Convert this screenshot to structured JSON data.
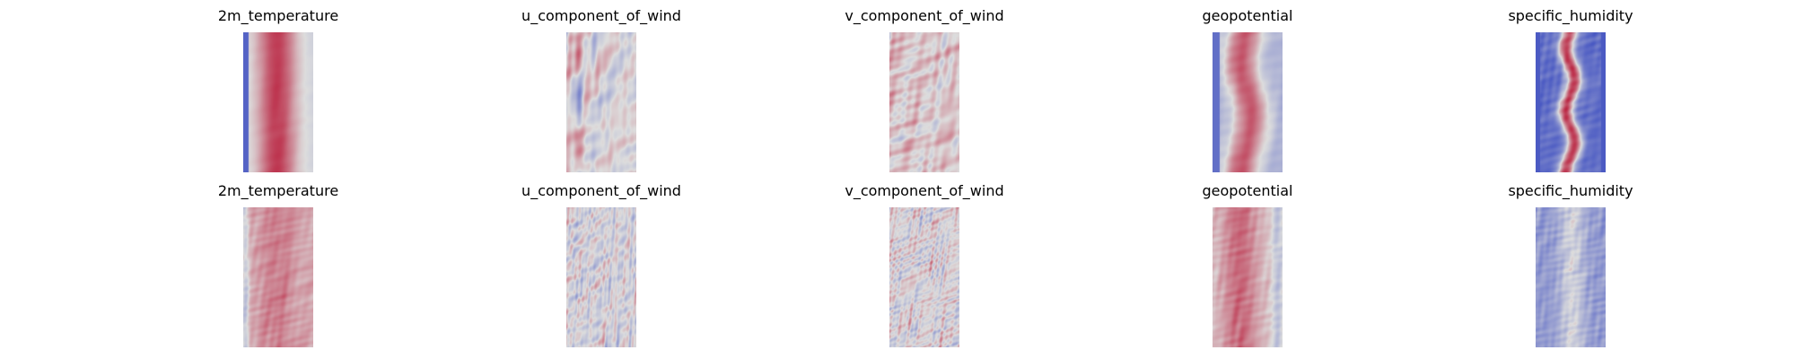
{
  "figure": {
    "colormap": "coolwarm",
    "colors": {
      "cold": "#3b4cc0",
      "neutral": "#dddddd",
      "warm": "#b40426"
    },
    "rows": [
      {
        "panels": [
          {
            "title": "2m_temperature",
            "pattern": "warm-band"
          },
          {
            "title": "u_component_of_wind",
            "pattern": "mixed-streaks"
          },
          {
            "title": "v_component_of_wind",
            "pattern": "mixed-blobs"
          },
          {
            "title": "geopotential",
            "pattern": "warm-band-soft"
          },
          {
            "title": "specific_humidity",
            "pattern": "humid-core"
          }
        ]
      },
      {
        "panels": [
          {
            "title": "2m_temperature",
            "pattern": "pale-warm"
          },
          {
            "title": "u_component_of_wind",
            "pattern": "fine-streaks"
          },
          {
            "title": "v_component_of_wind",
            "pattern": "fine-blobs"
          },
          {
            "title": "geopotential",
            "pattern": "pale-warm-band"
          },
          {
            "title": "specific_humidity",
            "pattern": "cool-wisps"
          }
        ]
      }
    ]
  }
}
